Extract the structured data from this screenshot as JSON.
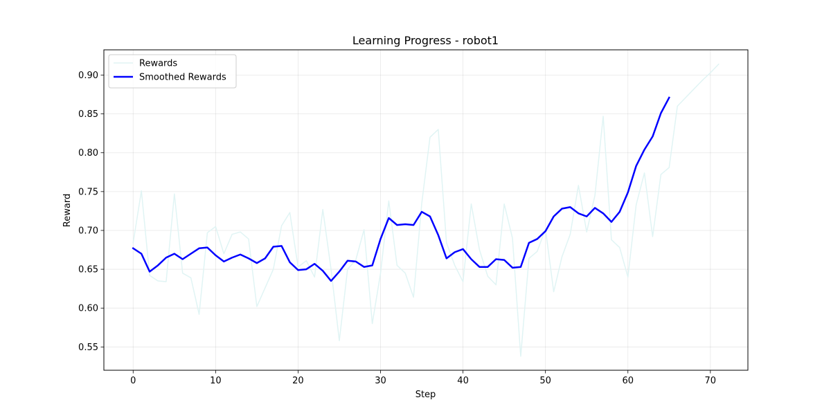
{
  "chart_data": {
    "type": "line",
    "title": "Learning Progress - robot1",
    "xlabel": "Step",
    "ylabel": "Reward",
    "xlim": [
      -3.55,
      74.55
    ],
    "ylim": [
      0.52,
      0.9325
    ],
    "xticks": [
      0,
      10,
      20,
      30,
      40,
      50,
      60,
      70
    ],
    "yticks": [
      0.55,
      0.6,
      0.65,
      0.7,
      0.75,
      0.8,
      0.85,
      0.9
    ],
    "ytick_labels": [
      "0.55",
      "0.60",
      "0.65",
      "0.70",
      "0.75",
      "0.80",
      "0.85",
      "0.90"
    ],
    "grid": true,
    "legend_position": "upper left",
    "series": [
      {
        "name": "Rewards",
        "color": "#e0f4f4",
        "x": [
          0,
          1,
          2,
          3,
          4,
          5,
          6,
          7,
          8,
          9,
          10,
          11,
          12,
          13,
          14,
          15,
          16,
          17,
          18,
          19,
          20,
          21,
          22,
          23,
          24,
          25,
          26,
          27,
          28,
          29,
          30,
          31,
          32,
          33,
          34,
          35,
          36,
          37,
          38,
          39,
          40,
          41,
          42,
          43,
          44,
          45,
          46,
          47,
          48,
          49,
          50,
          51,
          52,
          53,
          54,
          55,
          56,
          57,
          58,
          59,
          60,
          61,
          62,
          63,
          64,
          65,
          66,
          67,
          68,
          69,
          70,
          71
        ],
        "values": [
          0.684,
          0.751,
          0.642,
          0.635,
          0.634,
          0.747,
          0.645,
          0.639,
          0.592,
          0.697,
          0.705,
          0.67,
          0.695,
          0.698,
          0.689,
          0.602,
          0.626,
          0.65,
          0.706,
          0.723,
          0.653,
          0.661,
          0.64,
          0.727,
          0.65,
          0.558,
          0.65,
          0.662,
          0.701,
          0.58,
          0.645,
          0.738,
          0.655,
          0.645,
          0.614,
          0.735,
          0.82,
          0.83,
          0.684,
          0.655,
          0.634,
          0.734,
          0.675,
          0.641,
          0.63,
          0.734,
          0.69,
          0.538,
          0.664,
          0.673,
          0.702,
          0.621,
          0.666,
          0.695,
          0.758,
          0.698,
          0.745,
          0.847,
          0.688,
          0.678,
          0.64,
          0.733,
          0.774,
          0.692,
          0.772,
          0.781,
          0.86,
          0.871,
          0.882,
          0.893,
          0.903,
          0.914
        ]
      },
      {
        "name": "Smoothed Rewards",
        "color": "#0000ff",
        "x": [
          0,
          1,
          2,
          3,
          4,
          5,
          6,
          7,
          8,
          9,
          10,
          11,
          12,
          13,
          14,
          15,
          16,
          17,
          18,
          19,
          20,
          21,
          22,
          23,
          24,
          25,
          26,
          27,
          28,
          29,
          30,
          31,
          32,
          33,
          34,
          35,
          36,
          37,
          38,
          39,
          40,
          41,
          42,
          43,
          44,
          45,
          46,
          47,
          48,
          49,
          50,
          51,
          52,
          53,
          54,
          55,
          56,
          57,
          58,
          59,
          60,
          61,
          62,
          63,
          64,
          65
        ],
        "values": [
          0.677,
          0.67,
          0.647,
          0.655,
          0.665,
          0.67,
          0.663,
          0.67,
          0.677,
          0.678,
          0.668,
          0.66,
          0.665,
          0.669,
          0.664,
          0.658,
          0.664,
          0.679,
          0.68,
          0.659,
          0.649,
          0.65,
          0.657,
          0.648,
          0.635,
          0.647,
          0.661,
          0.66,
          0.653,
          0.655,
          0.689,
          0.716,
          0.707,
          0.708,
          0.707,
          0.724,
          0.718,
          0.694,
          0.664,
          0.672,
          0.676,
          0.663,
          0.653,
          0.653,
          0.663,
          0.662,
          0.652,
          0.653,
          0.684,
          0.689,
          0.699,
          0.718,
          0.728,
          0.73,
          0.722,
          0.718,
          0.729,
          0.722,
          0.711,
          0.724,
          0.749,
          0.783,
          0.804,
          0.821,
          0.851,
          0.871
        ]
      }
    ]
  }
}
